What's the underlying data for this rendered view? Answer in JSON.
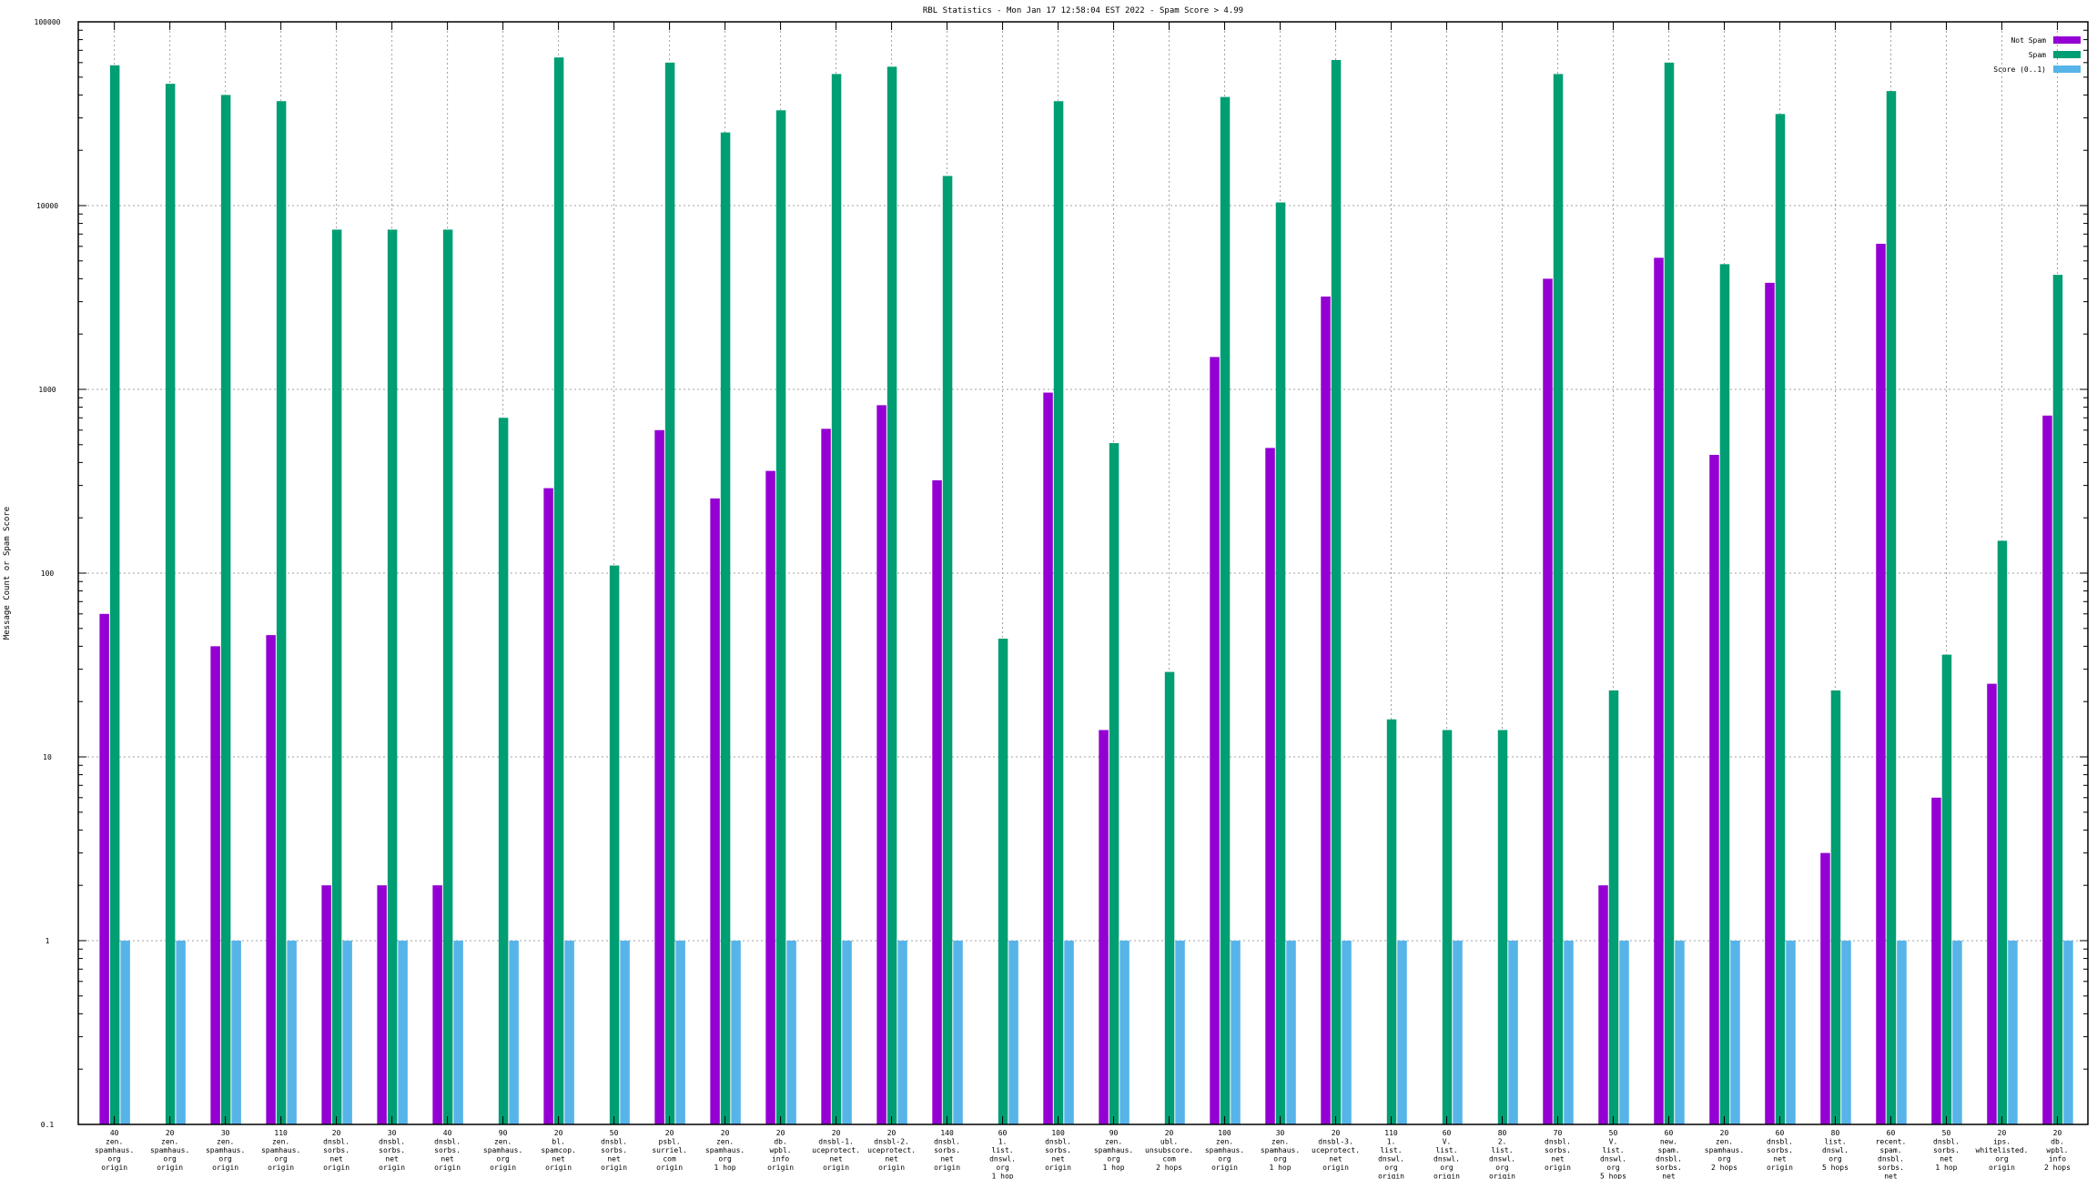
{
  "chart_data": {
    "type": "bar",
    "title": "RBL Statistics - Mon Jan 17 12:58:04 EST 2022 - Spam Score > 4.99",
    "xlabel": "",
    "ylabel": "Message Count or Spam Score",
    "yscale": "log",
    "ylim": [
      0.1,
      100000
    ],
    "yticks": [
      {
        "value": 0.1,
        "label": "0.1"
      },
      {
        "value": 1,
        "label": "1"
      },
      {
        "value": 10,
        "label": "10"
      },
      {
        "value": 100,
        "label": "100"
      },
      {
        "value": 1000,
        "label": "1000"
      },
      {
        "value": 10000,
        "label": "10000"
      },
      {
        "value": 100000,
        "label": "100000"
      }
    ],
    "grid": true,
    "legend_position": "top-right",
    "categories": [
      [
        "40",
        "zen.",
        "spamhaus.",
        "org",
        "origin"
      ],
      [
        "20",
        "zen.",
        "spamhaus.",
        "org",
        "origin"
      ],
      [
        "30",
        "zen.",
        "spamhaus.",
        "org",
        "origin"
      ],
      [
        "110",
        "zen.",
        "spamhaus.",
        "org",
        "origin"
      ],
      [
        "20",
        "dnsbl.",
        "sorbs.",
        "net",
        "origin"
      ],
      [
        "30",
        "dnsbl.",
        "sorbs.",
        "net",
        "origin"
      ],
      [
        "40",
        "dnsbl.",
        "sorbs.",
        "net",
        "origin"
      ],
      [
        "90",
        "zen.",
        "spamhaus.",
        "org",
        "origin"
      ],
      [
        "20",
        "bl.",
        "spamcop.",
        "net",
        "origin"
      ],
      [
        "50",
        "dnsbl.",
        "sorbs.",
        "net",
        "origin"
      ],
      [
        "20",
        "psbl.",
        "surriel.",
        "com",
        "origin"
      ],
      [
        "20",
        "zen.",
        "spamhaus.",
        "org",
        "1 hop"
      ],
      [
        "20",
        "db.",
        "wpbl.",
        "info",
        "origin"
      ],
      [
        "20",
        "dnsbl-1.",
        "uceprotect.",
        "net",
        "origin"
      ],
      [
        "20",
        "dnsbl-2.",
        "uceprotect.",
        "net",
        "origin"
      ],
      [
        "140",
        "dnsbl.",
        "sorbs.",
        "net",
        "origin"
      ],
      [
        "60",
        "1.",
        "list.",
        "dnswl.",
        "org",
        "1 hop"
      ],
      [
        "100",
        "dnsbl.",
        "sorbs.",
        "net",
        "origin"
      ],
      [
        "90",
        "zen.",
        "spamhaus.",
        "org",
        "1 hop"
      ],
      [
        "20",
        "ubl.",
        "unsubscore.",
        "com",
        "2 hops"
      ],
      [
        "100",
        "zen.",
        "spamhaus.",
        "org",
        "origin"
      ],
      [
        "30",
        "zen.",
        "spamhaus.",
        "org",
        "1 hop"
      ],
      [
        "20",
        "dnsbl-3.",
        "uceprotect.",
        "net",
        "origin"
      ],
      [
        "110",
        "1.",
        "list.",
        "dnswl.",
        "org",
        "origin"
      ],
      [
        "60",
        "V.",
        "list.",
        "dnswl.",
        "org",
        "origin"
      ],
      [
        "80",
        "2.",
        "list.",
        "dnswl.",
        "org",
        "origin"
      ],
      [
        "70",
        "dnsbl.",
        "sorbs.",
        "net",
        "origin"
      ],
      [
        "50",
        "V.",
        "list.",
        "dnswl.",
        "org",
        "5 hops"
      ],
      [
        "60",
        "new.",
        "spam.",
        "dnsbl.",
        "sorbs.",
        "net",
        "origin"
      ],
      [
        "20",
        "zen.",
        "spamhaus.",
        "org",
        "2 hops"
      ],
      [
        "60",
        "dnsbl.",
        "sorbs.",
        "net",
        "origin"
      ],
      [
        "80",
        "list.",
        "dnswl.",
        "org",
        "5 hops"
      ],
      [
        "60",
        "recent.",
        "spam.",
        "dnsbl.",
        "sorbs.",
        "net",
        "origin"
      ],
      [
        "50",
        "dnsbl.",
        "sorbs.",
        "net",
        "1 hop"
      ],
      [
        "20",
        "ips.",
        "whitelisted.",
        "org",
        "origin"
      ],
      [
        "20",
        "db.",
        "wpbl.",
        "info",
        "2 hops"
      ]
    ],
    "series": [
      {
        "name": "Not Spam",
        "color": "#9400d3",
        "values": [
          60,
          null,
          40,
          46,
          2,
          2,
          2,
          null,
          290,
          null,
          600,
          255,
          360,
          610,
          820,
          320,
          null,
          960,
          14,
          null,
          1500,
          480,
          3200,
          null,
          null,
          null,
          4000,
          2,
          5200,
          440,
          3800,
          3,
          6200,
          6,
          25,
          720
        ]
      },
      {
        "name": "Spam",
        "color": "#009e73",
        "values": [
          58000,
          46000,
          40000,
          37000,
          7400,
          7400,
          7400,
          700,
          64000,
          110,
          60000,
          25000,
          33000,
          52000,
          57000,
          14500,
          44,
          37000,
          510,
          29,
          39000,
          10400,
          62000,
          16,
          14,
          14,
          52000,
          23,
          60000,
          4800,
          31500,
          23,
          42000,
          36,
          150,
          4200
        ]
      },
      {
        "name": "Score (0..1)",
        "color": "#56b4e9",
        "values": [
          1,
          1,
          1,
          1,
          1,
          1,
          1,
          1,
          1,
          1,
          1,
          1,
          1,
          1,
          1,
          1,
          1,
          1,
          1,
          1,
          1,
          1,
          1,
          1,
          1,
          1,
          1,
          1,
          1,
          1,
          1,
          1,
          1,
          1,
          1,
          1
        ]
      }
    ]
  }
}
